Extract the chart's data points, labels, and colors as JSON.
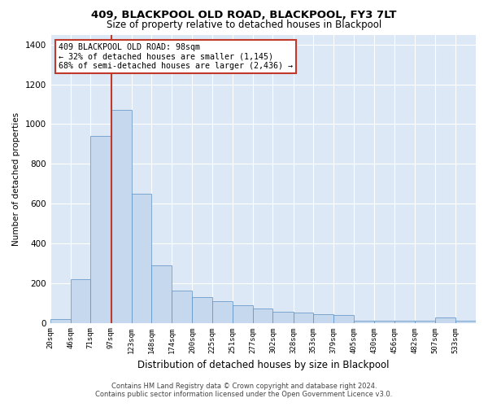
{
  "title": "409, BLACKPOOL OLD ROAD, BLACKPOOL, FY3 7LT",
  "subtitle": "Size of property relative to detached houses in Blackpool",
  "xlabel": "Distribution of detached houses by size in Blackpool",
  "ylabel": "Number of detached properties",
  "footer_line1": "Contains HM Land Registry data © Crown copyright and database right 2024.",
  "footer_line2": "Contains public sector information licensed under the Open Government Licence v3.0.",
  "annotation_line1": "409 BLACKPOOL OLD ROAD: 98sqm",
  "annotation_line2": "← 32% of detached houses are smaller (1,145)",
  "annotation_line3": "68% of semi-detached houses are larger (2,436) →",
  "property_size": 98,
  "bar_left_edges": [
    20,
    46,
    71,
    97,
    123,
    148,
    174,
    200,
    225,
    251,
    277,
    302,
    328,
    353,
    379,
    405,
    430,
    456,
    482,
    507,
    533
  ],
  "bar_heights": [
    20,
    220,
    940,
    1070,
    650,
    290,
    160,
    130,
    110,
    90,
    70,
    55,
    50,
    45,
    40,
    10,
    10,
    10,
    10,
    25,
    10
  ],
  "bar_color": "#c5d8ed",
  "bar_edge_color": "#5a8fc3",
  "vline_color": "#c0392b",
  "background_color": "#dce8f5",
  "ylim": [
    0,
    1450
  ],
  "yticks": [
    0,
    200,
    400,
    600,
    800,
    1000,
    1200,
    1400
  ],
  "grid_color": "#ffffff",
  "figsize": [
    6.0,
    5.0
  ],
  "dpi": 100
}
